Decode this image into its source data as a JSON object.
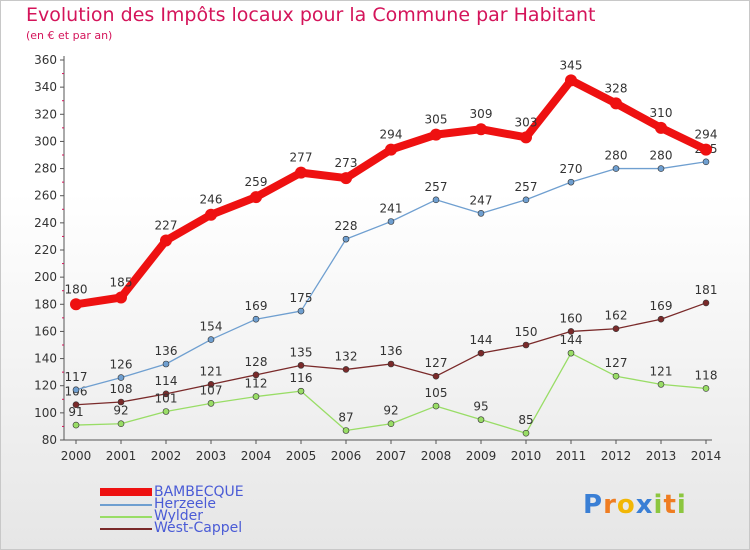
{
  "header": {
    "title": "Evolution des Impôts locaux pour la Commune par Habitant",
    "subtitle": "(en € et par an)"
  },
  "logo": {
    "text": "Proxiti"
  },
  "colors": {
    "title": "#d4145a",
    "legend_text": "#4a5bd6",
    "axis": "#555555"
  },
  "chart_data": {
    "type": "line",
    "x": [
      "2000",
      "2001",
      "2002",
      "2003",
      "2004",
      "2005",
      "2006",
      "2007",
      "2008",
      "2009",
      "2010",
      "2011",
      "2012",
      "2013",
      "2014"
    ],
    "ylim": [
      80,
      360
    ],
    "yticks": [
      80,
      100,
      120,
      140,
      160,
      180,
      200,
      220,
      240,
      260,
      280,
      300,
      320,
      340,
      360
    ],
    "grid": false,
    "legend_position": "bottom-left",
    "series": [
      {
        "name": "BAMBECQUE",
        "color": "#ee1111",
        "width": "thick",
        "values": [
          180,
          185,
          227,
          246,
          259,
          277,
          273,
          294,
          305,
          309,
          303,
          345,
          328,
          310,
          294
        ]
      },
      {
        "name": "Herzeele",
        "color": "#6f9fd0",
        "width": "thin",
        "values": [
          117,
          126,
          136,
          154,
          169,
          175,
          228,
          241,
          257,
          247,
          257,
          270,
          280,
          280,
          285
        ]
      },
      {
        "name": "Wylder",
        "color": "#99dd66",
        "width": "thin",
        "values": [
          91,
          92,
          101,
          107,
          112,
          116,
          87,
          92,
          105,
          95,
          85,
          144,
          127,
          121,
          118
        ]
      },
      {
        "name": "West-Cappel",
        "color": "#7a2a2a",
        "width": "thin",
        "values": [
          106,
          108,
          114,
          121,
          128,
          135,
          132,
          136,
          127,
          144,
          150,
          160,
          162,
          169,
          181
        ]
      }
    ]
  }
}
